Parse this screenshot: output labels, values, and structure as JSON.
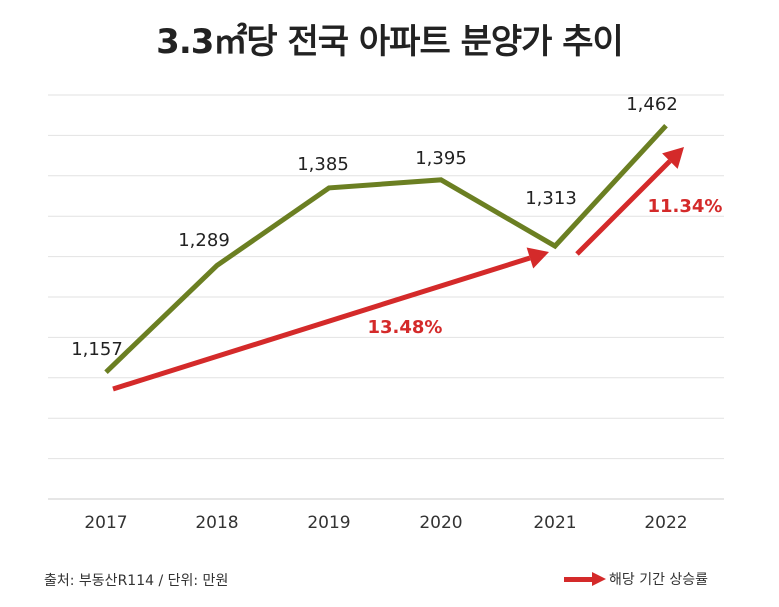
{
  "chart_data": {
    "type": "line",
    "title": "3.3㎡당 전국 아파트 분양가 추이",
    "categories": [
      "2017",
      "2018",
      "2019",
      "2020",
      "2021",
      "2022"
    ],
    "series": [
      {
        "name": "분양가",
        "values": [
          1157,
          1289,
          1385,
          1395,
          1313,
          1462
        ],
        "labels": [
          "1,157",
          "1,289",
          "1,385",
          "1,395",
          "1,313",
          "1,462"
        ],
        "color": "#6b7f22"
      }
    ],
    "ylim": [
      1000,
      1500
    ],
    "grid_step": 50,
    "grid": true,
    "annotations": [
      {
        "from": "2017",
        "to": "2021",
        "label": "13.48%",
        "color": "#d42a2a"
      },
      {
        "from": "2021",
        "to": "2022",
        "label": "11.34%",
        "color": "#d42a2a"
      }
    ],
    "source": "출처: 부동산R114 / 단위: 만원",
    "legend": {
      "label": "해당 기간 상승률",
      "color": "#d42a2a"
    }
  }
}
